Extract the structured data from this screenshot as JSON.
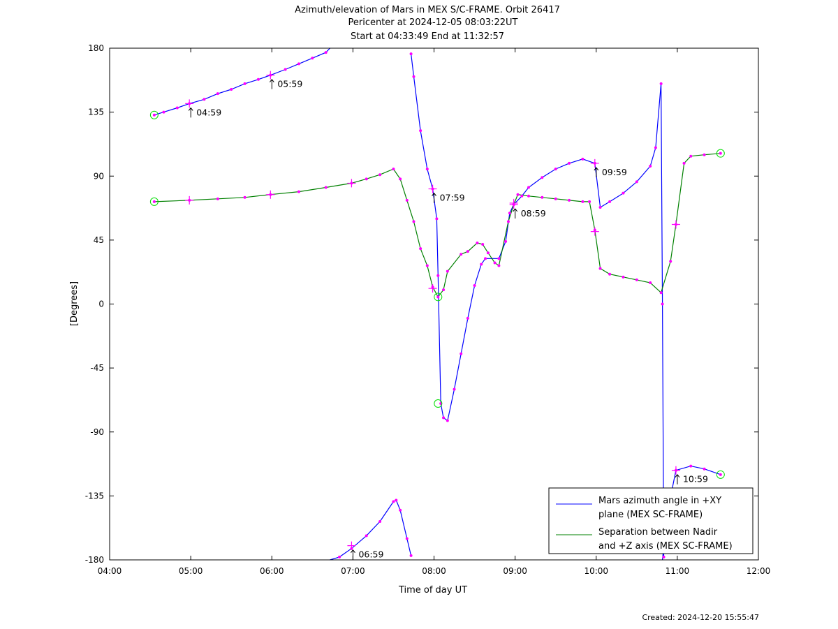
{
  "chart_data": {
    "type": "line",
    "title": [
      "Azimuth/elevation of Mars in MEX S/C-FRAME.  Orbit 26417",
      "Pericenter at 2024-12-05 08:03:22UT",
      "Start at 04:33:49 End at 11:32:57"
    ],
    "xlabel": "Time of day UT",
    "ylabel": "[Degrees]",
    "footer": "Created: 2024-12-20 15:55:47",
    "xlim": [
      "04:00",
      "12:00"
    ],
    "ylim": [
      -180,
      180
    ],
    "xticks": [
      "04:00",
      "05:00",
      "06:00",
      "07:00",
      "08:00",
      "09:00",
      "10:00",
      "11:00",
      "12:00"
    ],
    "yticks": [
      180,
      135,
      90,
      45,
      0,
      -45,
      -90,
      -135,
      -180
    ],
    "legend_position": "bottom-right",
    "series": [
      {
        "name": "Mars azimuth angle in +XY plane (MEX SC-FRAME)",
        "legend_lines": [
          "Mars azimuth angle in +XY",
          "plane (MEX SC-FRAME)"
        ],
        "color": "#0000ff",
        "points": [
          [
            "04:33",
            133
          ],
          [
            "04:40",
            135
          ],
          [
            "04:50",
            138
          ],
          [
            "04:59",
            141
          ],
          [
            "05:10",
            144
          ],
          [
            "05:20",
            148
          ],
          [
            "05:30",
            151
          ],
          [
            "05:40",
            155
          ],
          [
            "05:50",
            158
          ],
          [
            "05:59",
            161
          ],
          [
            "06:10",
            165
          ],
          [
            "06:20",
            169
          ],
          [
            "06:30",
            173
          ],
          [
            "06:40",
            177
          ],
          [
            "06:43",
            180
          ],
          null,
          [
            "06:43",
            -180
          ],
          [
            "06:50",
            -178
          ],
          [
            "06:59",
            -172
          ],
          [
            "07:10",
            -163
          ],
          [
            "07:20",
            -153
          ],
          [
            "07:30",
            -139
          ],
          [
            "07:32",
            -138
          ],
          [
            "07:35",
            -145
          ],
          [
            "07:40",
            -165
          ],
          [
            "07:43",
            -177
          ],
          null,
          [
            "07:43",
            176
          ],
          [
            "07:45",
            160
          ],
          [
            "07:50",
            122
          ],
          [
            "07:55",
            95
          ],
          [
            "07:59",
            81
          ],
          [
            "08:02",
            60
          ],
          [
            "08:03",
            20
          ],
          [
            "08:05",
            -70
          ],
          [
            "08:07",
            -80
          ],
          [
            "08:10",
            -82
          ],
          [
            "08:15",
            -60
          ],
          [
            "08:20",
            -35
          ],
          [
            "08:25",
            -10
          ],
          [
            "08:30",
            13
          ],
          [
            "08:35",
            28
          ],
          [
            "08:38",
            32
          ],
          [
            "08:48",
            32
          ],
          [
            "08:53",
            44
          ],
          [
            "08:56",
            64
          ],
          [
            "08:59",
            70
          ],
          [
            "09:05",
            76
          ],
          [
            "09:10",
            82
          ],
          [
            "09:20",
            89
          ],
          [
            "09:30",
            95
          ],
          [
            "09:40",
            99
          ],
          [
            "09:50",
            102
          ],
          [
            "09:59",
            99
          ],
          [
            "10:03",
            68
          ],
          [
            "10:10",
            72
          ],
          [
            "10:20",
            78
          ],
          [
            "10:30",
            86
          ],
          [
            "10:40",
            97
          ],
          [
            "10:44",
            110
          ],
          [
            "10:48",
            155
          ],
          [
            "10:49",
            0
          ],
          [
            "10:50",
            -178
          ],
          null,
          [
            "10:49",
            -180
          ],
          [
            "10:52",
            -150
          ],
          [
            "10:59",
            -117
          ],
          [
            "11:10",
            -114
          ],
          [
            "11:20",
            -116
          ],
          [
            "11:32",
            -120
          ]
        ]
      },
      {
        "name": "Separation between Nadir and +Z axis (MEX SC-FRAME)",
        "legend_lines": [
          "Separation between Nadir",
          "and +Z axis (MEX SC-FRAME)"
        ],
        "color": "#008000",
        "points": [
          [
            "04:33",
            72
          ],
          [
            "04:59",
            73
          ],
          [
            "05:20",
            74
          ],
          [
            "05:40",
            75
          ],
          [
            "05:59",
            77
          ],
          [
            "06:20",
            79
          ],
          [
            "06:40",
            82
          ],
          [
            "06:59",
            85
          ],
          [
            "07:10",
            88
          ],
          [
            "07:20",
            91
          ],
          [
            "07:30",
            95
          ],
          [
            "07:35",
            88
          ],
          [
            "07:40",
            73
          ],
          [
            "07:45",
            58
          ],
          [
            "07:50",
            39
          ],
          [
            "07:55",
            27
          ],
          [
            "07:59",
            12
          ],
          [
            "08:03",
            5
          ],
          [
            "08:07",
            10
          ],
          [
            "08:10",
            23
          ],
          [
            "08:20",
            35
          ],
          [
            "08:25",
            37
          ],
          [
            "08:32",
            43
          ],
          [
            "08:36",
            42
          ],
          [
            "08:40",
            36
          ],
          [
            "08:45",
            29
          ],
          [
            "08:48",
            27
          ],
          [
            "08:55",
            58
          ],
          [
            "08:59",
            70
          ],
          [
            "09:02",
            77
          ],
          [
            "09:10",
            76
          ],
          [
            "09:20",
            75
          ],
          [
            "09:30",
            74
          ],
          [
            "09:40",
            73
          ],
          [
            "09:50",
            72
          ],
          [
            "09:55",
            72
          ],
          [
            "09:59",
            52
          ],
          [
            "10:03",
            25
          ],
          [
            "10:10",
            21
          ],
          [
            "10:20",
            19
          ],
          [
            "10:30",
            17
          ],
          [
            "10:40",
            15
          ],
          [
            "10:48",
            8
          ],
          [
            "10:55",
            30
          ],
          [
            "10:59",
            56
          ],
          [
            "11:05",
            99
          ],
          [
            "11:10",
            104
          ],
          [
            "11:20",
            105
          ],
          [
            "11:32",
            106
          ]
        ]
      }
    ],
    "markers": {
      "dot_color": "#ff00ff",
      "endpoint_color": "#00dd00",
      "endpoints": [
        [
          "04:33",
          133
        ],
        [
          "04:33",
          72
        ],
        [
          "11:32",
          106
        ],
        [
          "11:32",
          -120
        ],
        [
          "08:03",
          5
        ],
        [
          "08:03",
          -70
        ]
      ],
      "hour_crosses": [
        [
          "04:59",
          141
        ],
        [
          "05:59",
          161
        ],
        [
          "06:59",
          -170
        ],
        [
          "07:59",
          81
        ],
        [
          "08:59",
          70
        ],
        [
          "09:59",
          99
        ],
        [
          "10:59",
          -117
        ],
        [
          "04:59",
          73
        ],
        [
          "05:59",
          77
        ],
        [
          "06:59",
          85
        ],
        [
          "07:59",
          11
        ],
        [
          "08:59",
          71
        ],
        [
          "09:59",
          51
        ],
        [
          "10:59",
          56
        ]
      ]
    },
    "annotations": [
      {
        "label": "04:59",
        "t": "04:59",
        "y": 141
      },
      {
        "label": "05:59",
        "t": "05:59",
        "y": 161
      },
      {
        "label": "06:59",
        "t": "06:59",
        "y": -170
      },
      {
        "label": "07:59",
        "t": "07:59",
        "y": 81
      },
      {
        "label": "08:59",
        "t": "08:59",
        "y": 70
      },
      {
        "label": "09:59",
        "t": "09:59",
        "y": 99
      },
      {
        "label": "10:59",
        "t": "10:59",
        "y": -117
      }
    ]
  }
}
